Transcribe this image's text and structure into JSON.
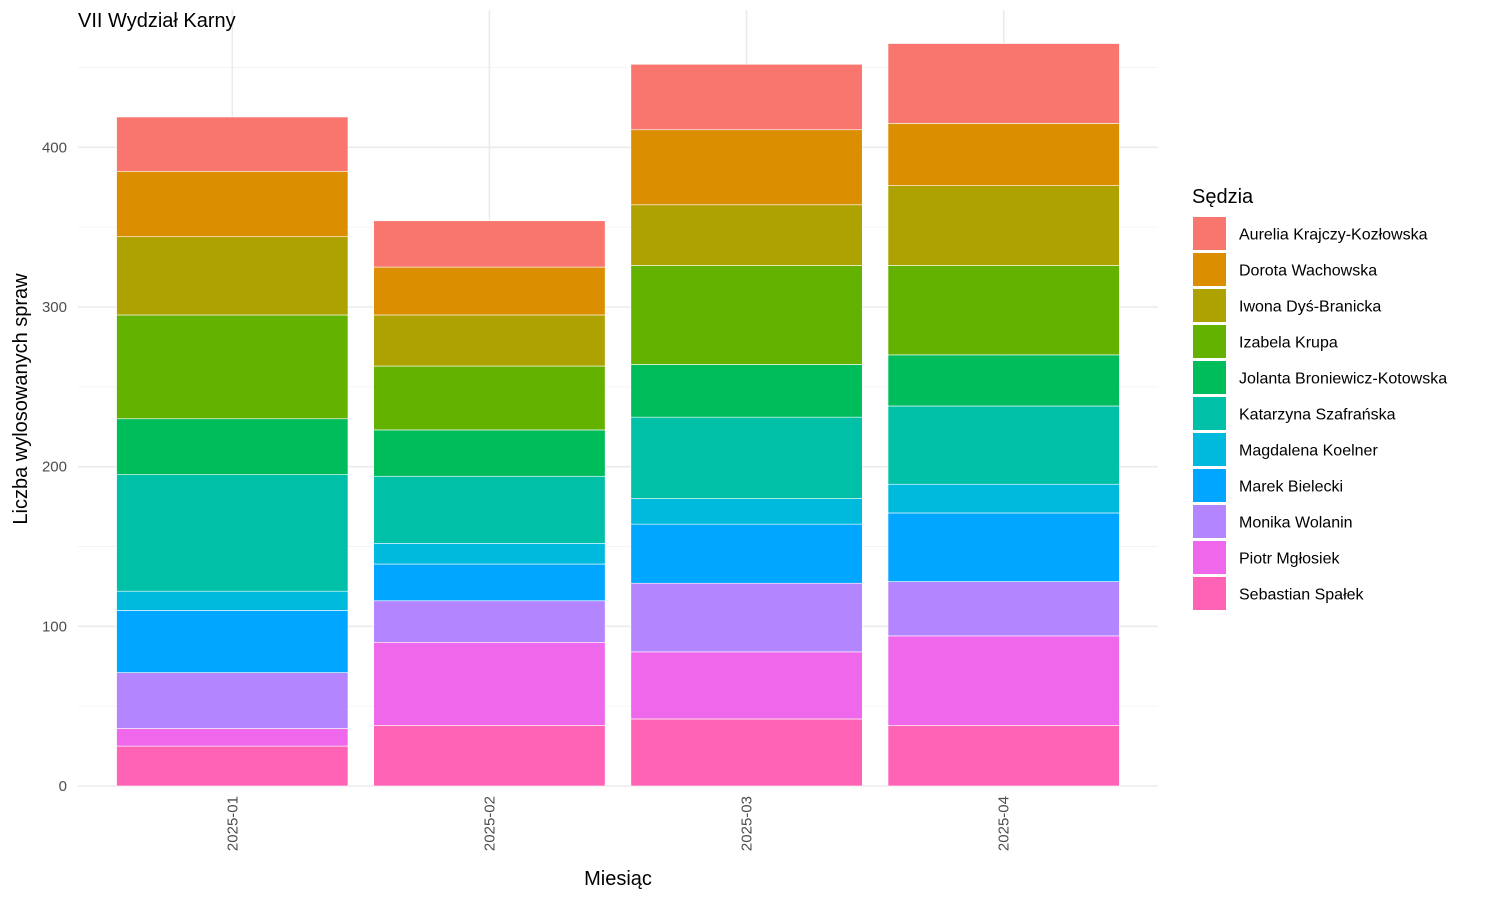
{
  "chart_data": {
    "type": "bar",
    "stacked": true,
    "title": "VII Wydział Karny",
    "xlabel": "Miesiąc",
    "ylabel": "Liczba wylosowanych spraw",
    "ylim": [
      0,
      486
    ],
    "yticks": [
      0,
      100,
      200,
      300,
      400
    ],
    "grid": true,
    "legend_title": "Sędzia",
    "legend_position": "right",
    "categories": [
      "2025-01",
      "2025-02",
      "2025-03",
      "2025-04"
    ],
    "series": [
      {
        "name": "Aurelia Krajczy-Kozłowska",
        "color": "#F8766D",
        "values": [
          34,
          29,
          41,
          50
        ]
      },
      {
        "name": "Dorota Wachowska",
        "color": "#DB8E00",
        "values": [
          41,
          30,
          47,
          39
        ]
      },
      {
        "name": "Iwona Dyś-Branicka",
        "color": "#AEA200",
        "values": [
          49,
          32,
          38,
          50
        ]
      },
      {
        "name": "Izabela Krupa",
        "color": "#64B200",
        "values": [
          65,
          40,
          62,
          56
        ]
      },
      {
        "name": "Jolanta Broniewicz-Kotowska",
        "color": "#00BD5C",
        "values": [
          35,
          29,
          33,
          32
        ]
      },
      {
        "name": "Katarzyna Szafrańska",
        "color": "#00C1A7",
        "values": [
          73,
          42,
          51,
          49
        ]
      },
      {
        "name": "Magdalena Koelner",
        "color": "#00BADE",
        "values": [
          12,
          13,
          16,
          18
        ]
      },
      {
        "name": "Marek Bielecki",
        "color": "#00A6FF",
        "values": [
          39,
          23,
          37,
          43
        ]
      },
      {
        "name": "Monika Wolanin",
        "color": "#B385FF",
        "values": [
          35,
          26,
          43,
          34
        ]
      },
      {
        "name": "Piotr Mgłosiek",
        "color": "#EF67EB",
        "values": [
          11,
          52,
          42,
          56
        ]
      },
      {
        "name": "Sebastian Spałek",
        "color": "#FF63B6",
        "values": [
          25,
          38,
          42,
          38
        ]
      }
    ]
  }
}
